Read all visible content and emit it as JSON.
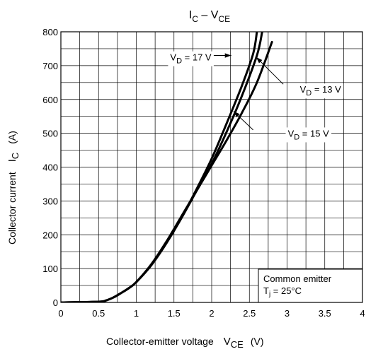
{
  "chart_data": {
    "type": "line",
    "title": {
      "main": "I",
      "main_sub": "C",
      "sep": " – V",
      "tail_sub": "CE"
    },
    "xlabel": {
      "text": "Collector-emitter voltage",
      "sym": "V",
      "sym_sub": "CE",
      "unit": "(V)"
    },
    "ylabel": {
      "text": "Collector current",
      "sym": "I",
      "sym_sub": "C",
      "unit": "(A)"
    },
    "xlim": [
      0,
      4
    ],
    "ylim": [
      0,
      800
    ],
    "xticks": [
      0,
      0.5,
      1,
      1.5,
      2,
      2.5,
      3,
      3.5,
      4
    ],
    "xtick_labels": [
      "0",
      "0.5",
      "1",
      "1.5",
      "2",
      "2.5",
      "3",
      "3.5",
      "4"
    ],
    "yticks": [
      0,
      100,
      200,
      300,
      400,
      500,
      600,
      700,
      800
    ],
    "ytick_labels": [
      "0",
      "100",
      "200",
      "300",
      "400",
      "500",
      "600",
      "700",
      "800"
    ],
    "grid": true,
    "x_minor_step": 0.25,
    "y_minor_step": 50,
    "series": [
      {
        "name": "VD = 17 V",
        "pre": "V",
        "sub": "D",
        "post": " = 17 V",
        "x": [
          0,
          0.5,
          0.6,
          0.7,
          0.8,
          0.9,
          1.0,
          1.2,
          1.4,
          1.6,
          1.8,
          2.0,
          2.2,
          2.4,
          2.55,
          2.6
        ],
        "y": [
          0,
          2,
          6,
          15,
          28,
          42,
          60,
          110,
          175,
          250,
          335,
          425,
          530,
          640,
          735,
          800
        ]
      },
      {
        "name": "VD = 15 V",
        "pre": "V",
        "sub": "D",
        "post": " = 15 V",
        "x": [
          0,
          0.5,
          0.6,
          0.7,
          0.8,
          0.9,
          1.0,
          1.2,
          1.4,
          1.6,
          1.8,
          2.0,
          2.2,
          2.4,
          2.6,
          2.67
        ],
        "y": [
          0,
          2,
          6,
          15,
          28,
          42,
          60,
          112,
          178,
          250,
          330,
          410,
          505,
          610,
          730,
          800
        ]
      },
      {
        "name": "VD = 13 V",
        "pre": "V",
        "sub": "D",
        "post": " = 13 V",
        "x": [
          0,
          0.5,
          0.6,
          0.7,
          0.8,
          0.9,
          1.0,
          1.2,
          1.4,
          1.6,
          1.8,
          2.0,
          2.2,
          2.4,
          2.6,
          2.8
        ],
        "y": [
          0,
          2,
          6,
          15,
          28,
          42,
          60,
          113,
          180,
          255,
          330,
          405,
          480,
          560,
          650,
          770
        ]
      }
    ],
    "annotations": [
      {
        "series_index": 0,
        "label_at": [
          1.45,
          715
        ],
        "arrow_from": [
          1.99,
          730
        ],
        "arrow_to": [
          2.26,
          730
        ]
      },
      {
        "series_index": 2,
        "label_at": [
          3.17,
          620
        ],
        "arrow_from": [
          2.95,
          645
        ],
        "arrow_to": [
          2.59,
          725
        ]
      },
      {
        "series_index": 1,
        "label_at": [
          3.01,
          490
        ],
        "arrow_from": [
          2.55,
          510
        ],
        "arrow_to": [
          2.29,
          565
        ]
      }
    ],
    "info_box": {
      "line1": "Common emitter",
      "line2": {
        "pre": "T",
        "sub": "j",
        "post": " = 25°C"
      }
    }
  }
}
